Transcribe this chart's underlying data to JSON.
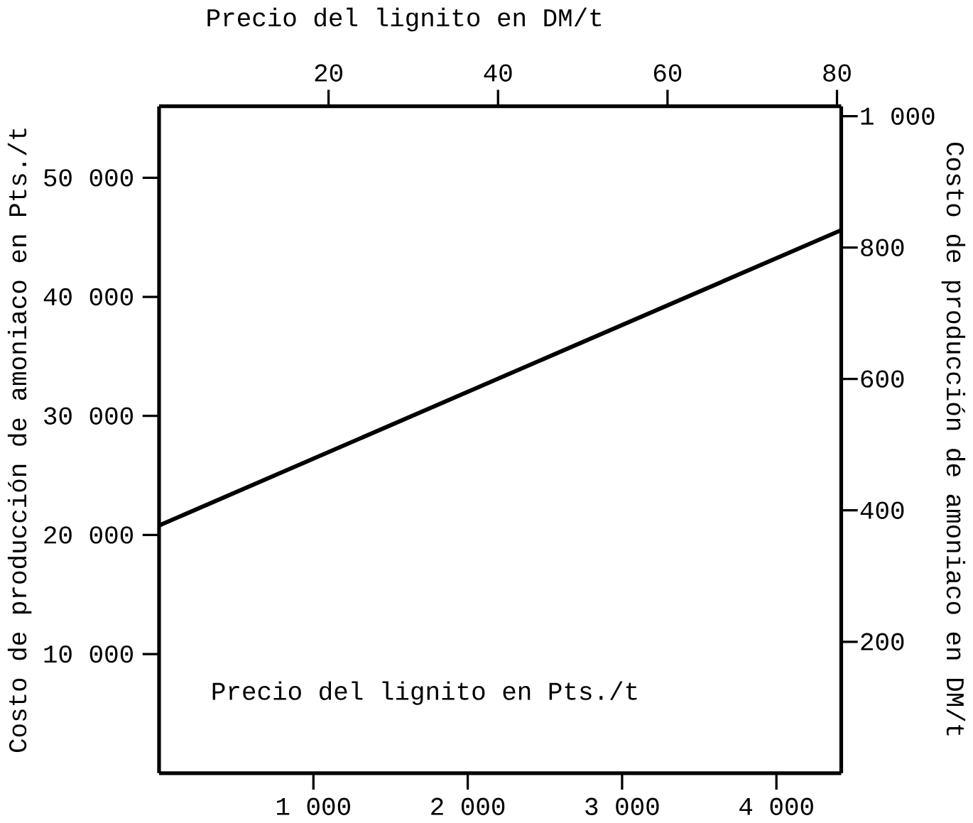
{
  "chart_data": {
    "type": "line",
    "xlabel": "Precio del lignito en Pts./t",
    "ylabel": "Costo de producción de amoniaco en Pts./t",
    "x2label": "Precio del lignito en DM/t",
    "y2label": "Costo de producción de amoniaco en DM/t",
    "xlim": [
      0,
      4420
    ],
    "xticks": [
      {
        "value": 1000,
        "label": "1 000"
      },
      {
        "value": 2000,
        "label": "2 000"
      },
      {
        "value": 3000,
        "label": "3 000"
      },
      {
        "value": 4000,
        "label": "4 000"
      }
    ],
    "ylim": [
      0,
      56000
    ],
    "yticks": [
      {
        "value": 10000,
        "label": "10 000"
      },
      {
        "value": 20000,
        "label": "20 000"
      },
      {
        "value": 30000,
        "label": "30 000"
      },
      {
        "value": 40000,
        "label": "40 000"
      },
      {
        "value": 50000,
        "label": "50 000"
      }
    ],
    "x2lim": [
      0,
      80.5
    ],
    "x2ticks": [
      20,
      40,
      60,
      80
    ],
    "y2lim": [
      0,
      1015
    ],
    "y2ticks": [
      200,
      400,
      600,
      800,
      {
        "value": 1000,
        "label": "1 000"
      }
    ],
    "x": [
      0,
      4420
    ],
    "series": [
      {
        "color": "#000000",
        "values": [
          20800,
          45600
        ]
      }
    ],
    "grid": false
  }
}
